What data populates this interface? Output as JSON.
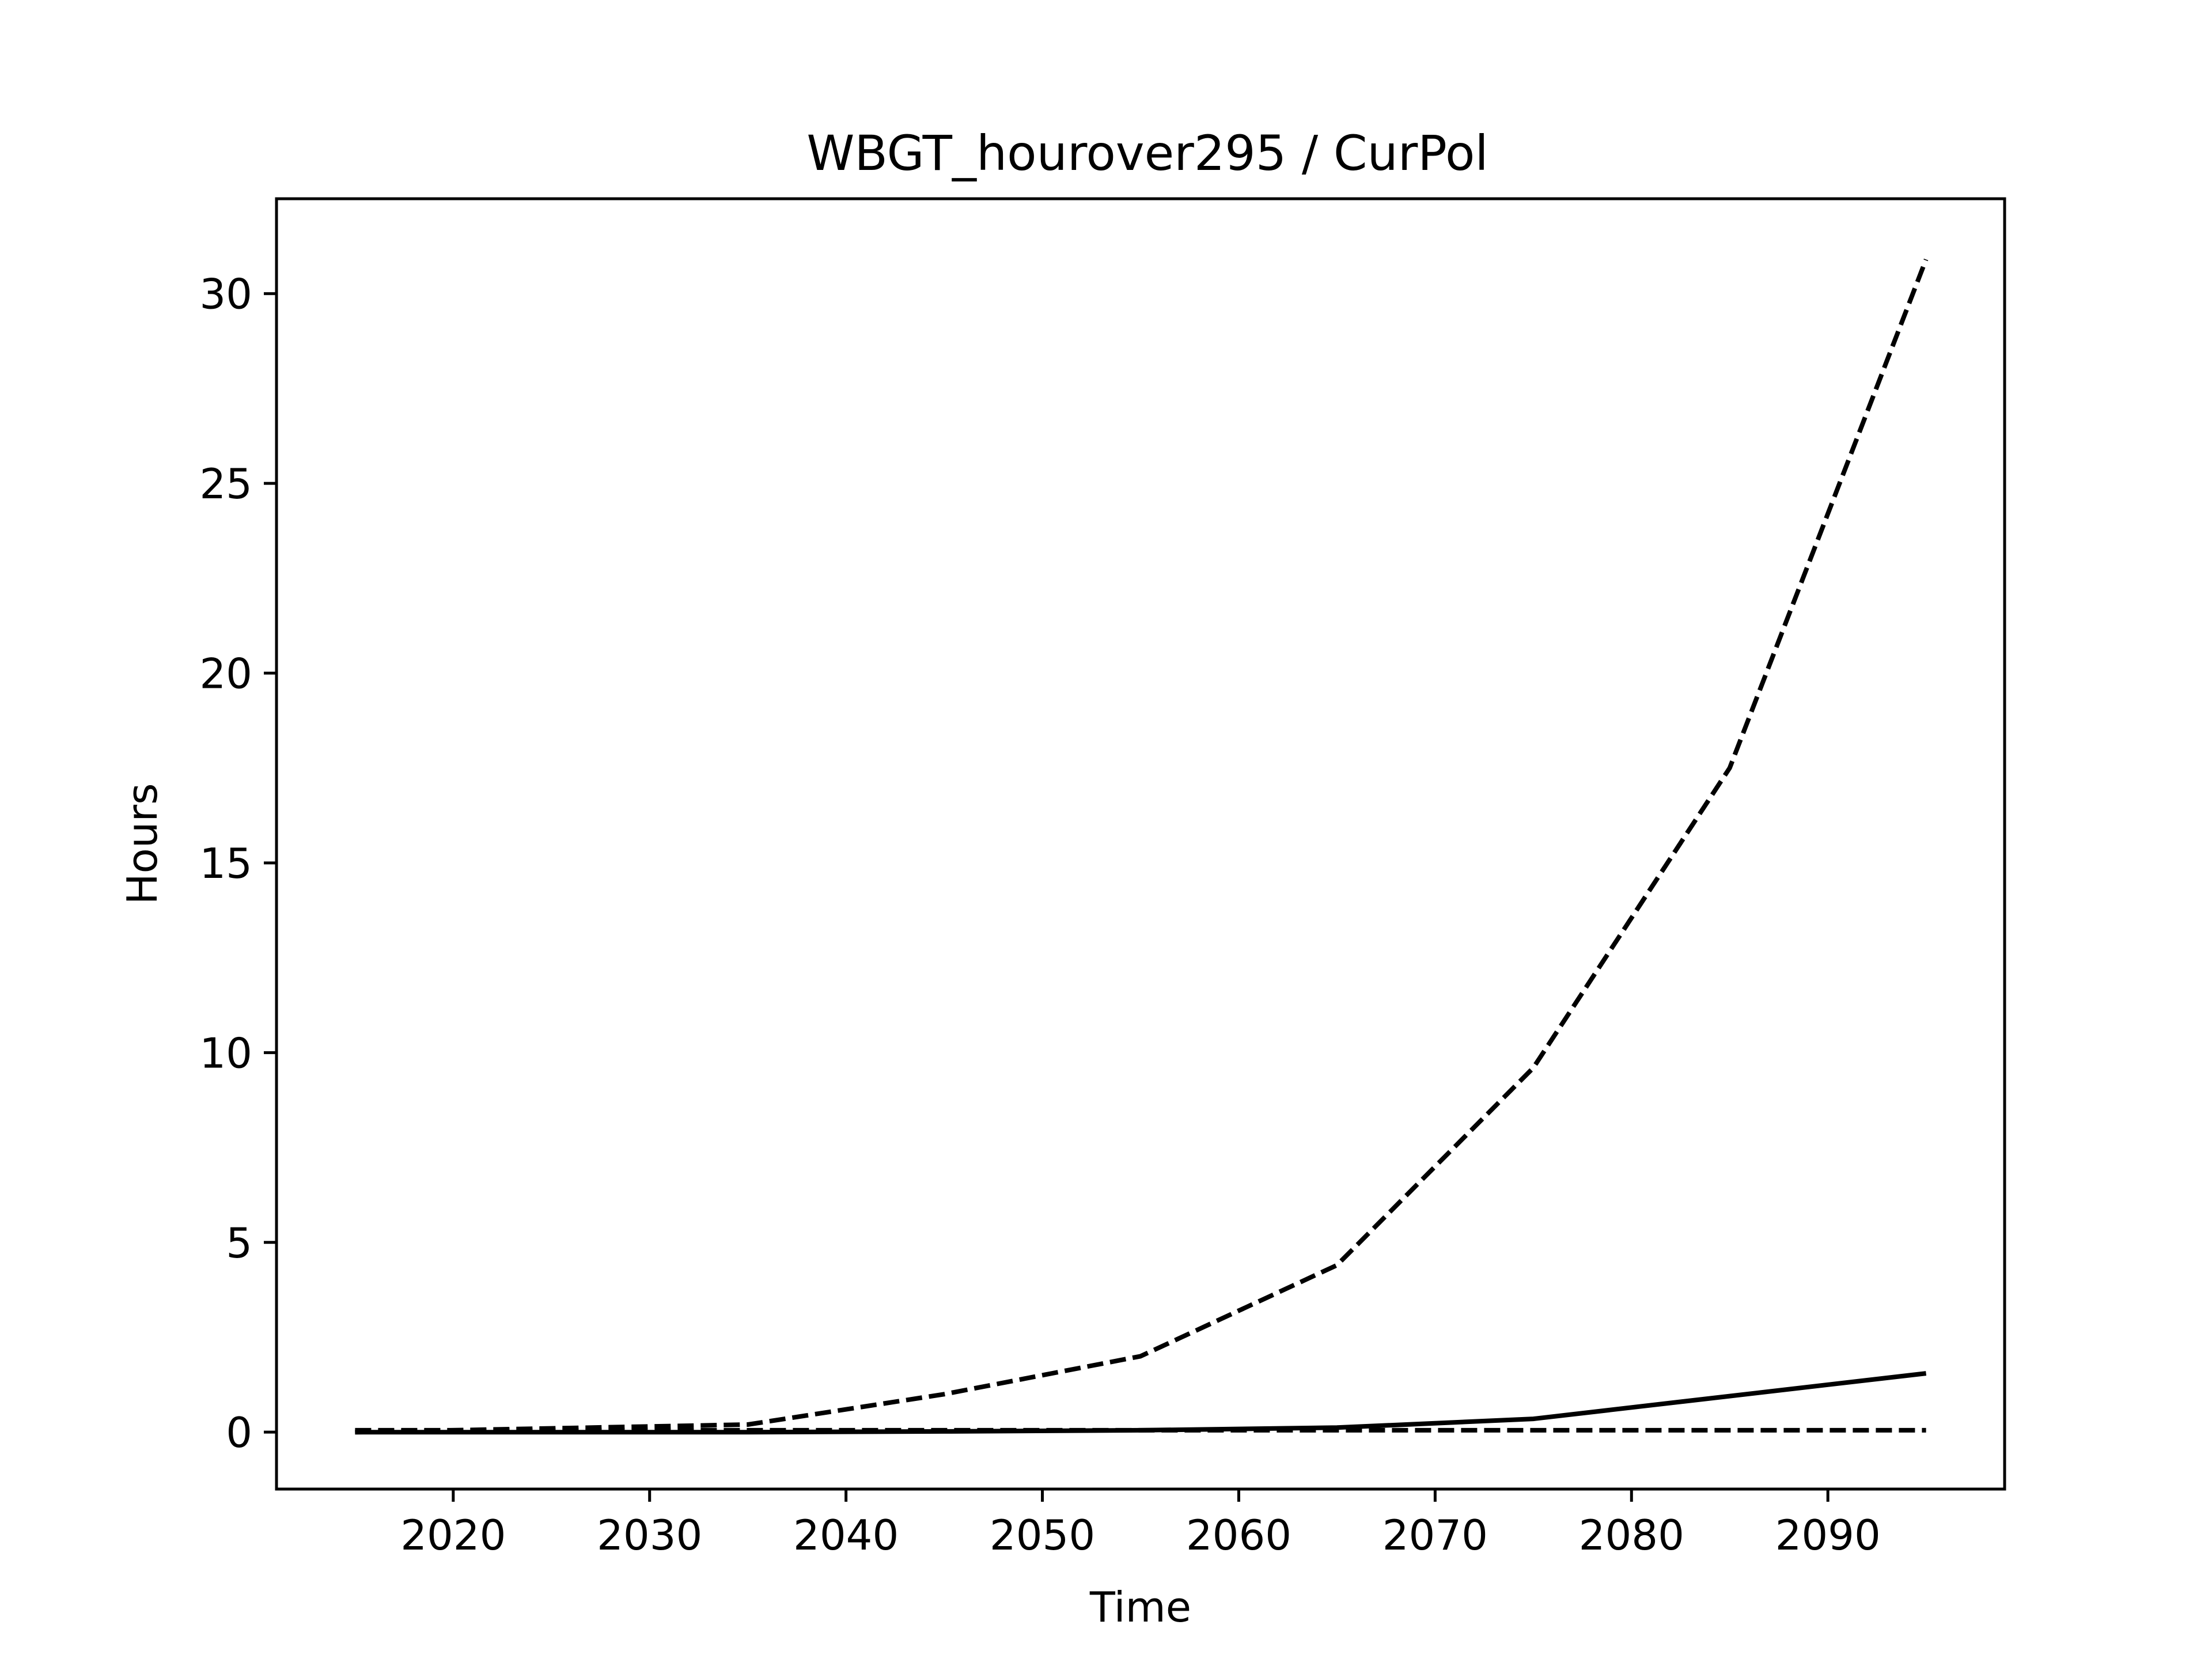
{
  "chart_data": {
    "type": "line",
    "title": "WBGT_hourover295 / CurPol",
    "xlabel": "Time",
    "ylabel": "Hours",
    "x": [
      2015,
      2025,
      2035,
      2045,
      2055,
      2065,
      2075,
      2085,
      2095
    ],
    "xlim": [
      2011,
      2099
    ],
    "ylim": [
      -1.5,
      32.5
    ],
    "xticks": [
      2020,
      2030,
      2040,
      2050,
      2060,
      2070,
      2080,
      2090
    ],
    "yticks": [
      0,
      5,
      10,
      15,
      20,
      25,
      30
    ],
    "grid": false,
    "legend": "none",
    "series": [
      {
        "style": "dashed",
        "color": "#000000",
        "values": [
          0.0,
          0.1,
          0.2,
          1.0,
          2.0,
          4.4,
          9.6,
          17.5,
          30.9
        ]
      },
      {
        "style": "solid",
        "color": "#000000",
        "values": [
          0.0,
          0.0,
          0.0,
          0.02,
          0.05,
          0.12,
          0.35,
          0.95,
          1.55
        ]
      },
      {
        "style": "dashed",
        "color": "#000000",
        "values": [
          0.05,
          0.05,
          0.05,
          0.05,
          0.05,
          0.05,
          0.05,
          0.05,
          0.05
        ]
      }
    ]
  }
}
